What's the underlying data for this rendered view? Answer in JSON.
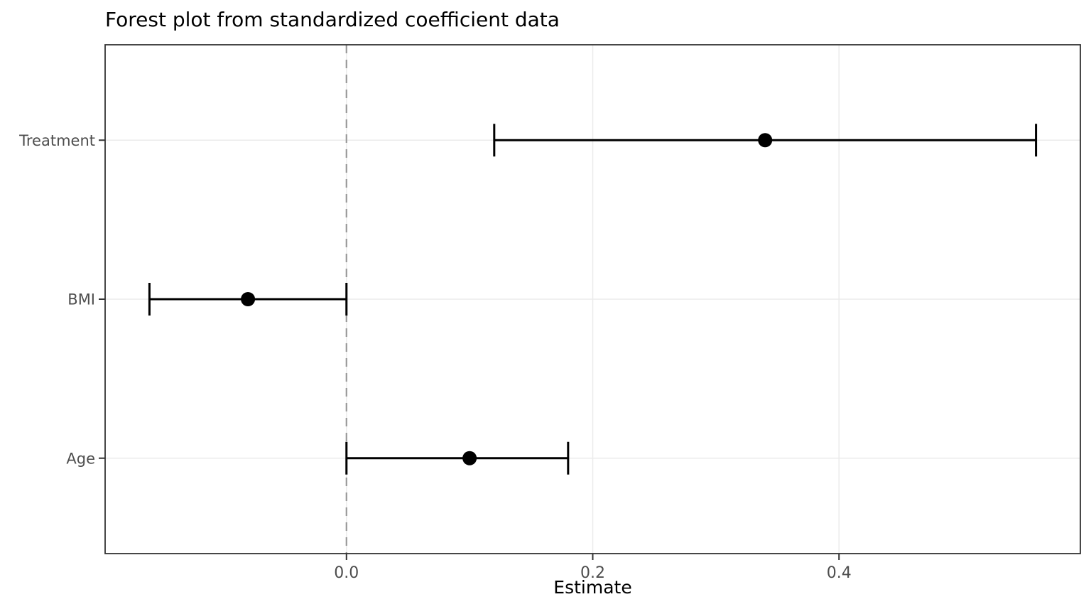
{
  "chart_data": {
    "type": "scatter",
    "variant": "forest-plot",
    "title": "Forest plot from standardized coefficient data",
    "xlabel": "Estimate",
    "ylabel": "",
    "categories": [
      "Treatment",
      "BMI",
      "Age"
    ],
    "estimates": [
      0.34,
      -0.08,
      0.1
    ],
    "ci_lower": [
      0.12,
      -0.16,
      0.0
    ],
    "ci_upper": [
      0.56,
      0.0,
      0.18
    ],
    "x_ticks": [
      0.0,
      0.2,
      0.4
    ],
    "x_tick_labels": [
      "0.0",
      "0.2",
      "0.4"
    ],
    "xlim": [
      -0.196,
      0.596
    ],
    "reference_line_x": 0,
    "reference_line_style": "dashed",
    "grid": true,
    "legend": false
  },
  "colors": {
    "point": "#000000",
    "error_bar": "#000000",
    "reference_line": "#999999",
    "grid_major": "#ebebeb",
    "panel_border": "#333333",
    "tick_mark": "#333333",
    "tick_text": "#4d4d4d",
    "title_text": "#000000",
    "background": "#ffffff"
  }
}
